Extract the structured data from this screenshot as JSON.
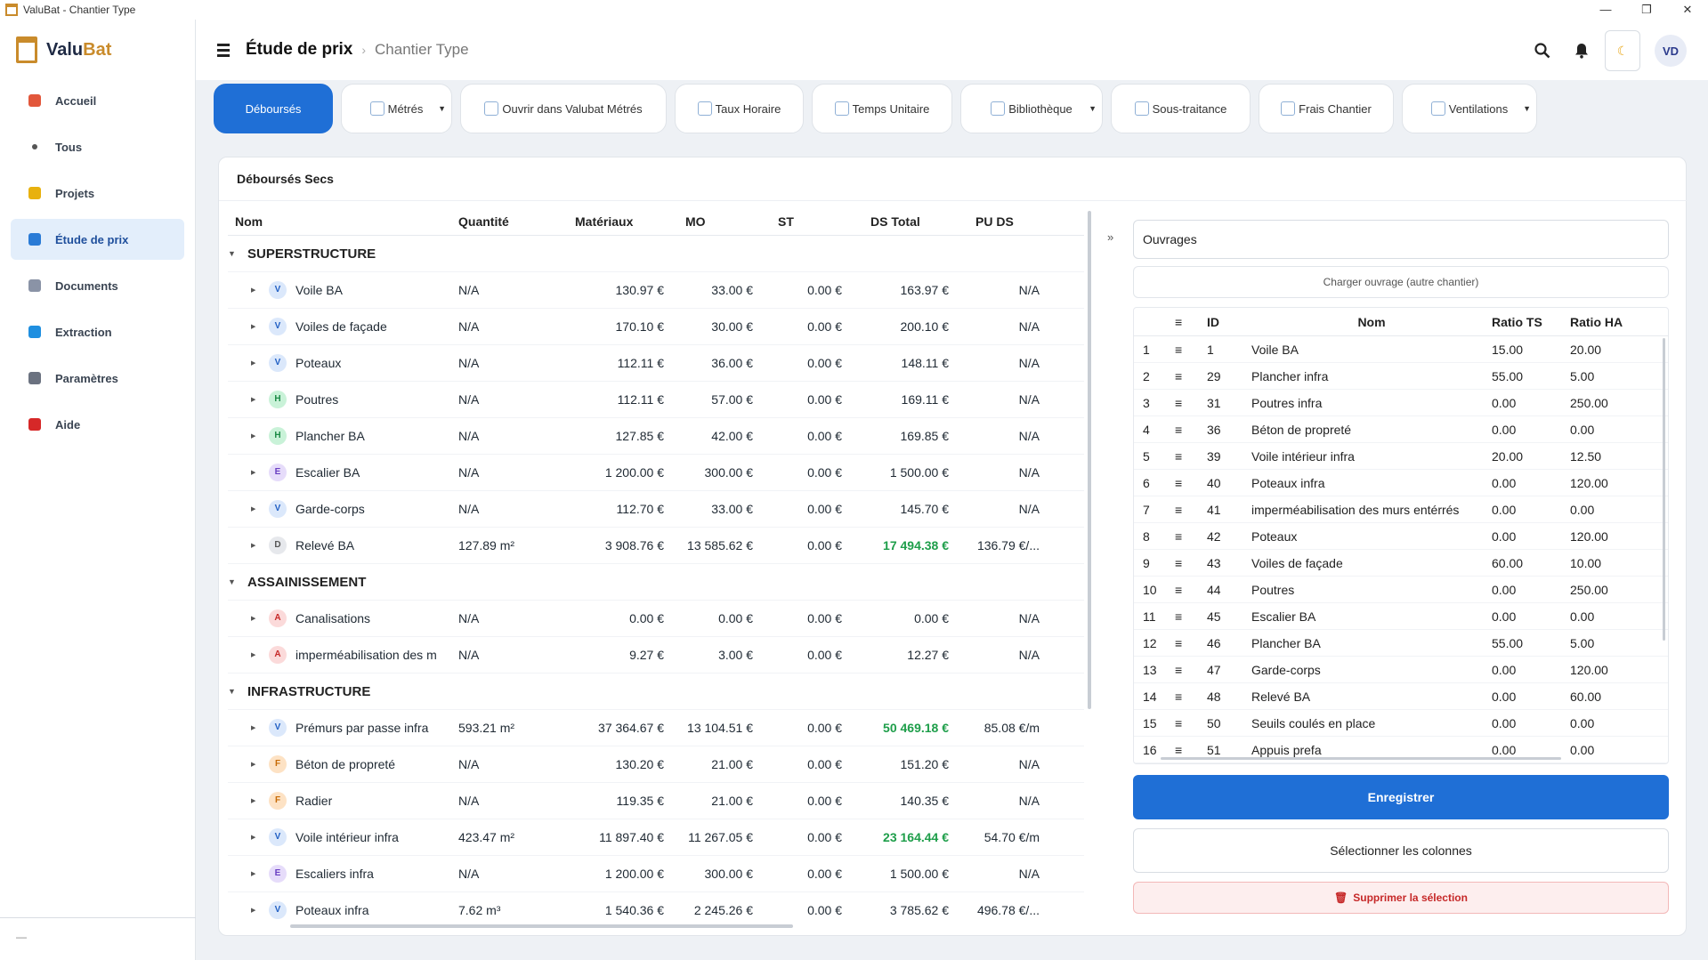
{
  "window": {
    "title": "ValuBat - Chantier Type"
  },
  "logo": {
    "part1": "Valu",
    "part2": "Bat"
  },
  "sidebar": {
    "items": [
      {
        "label": "Accueil",
        "icon": "home-icon",
        "color": "#e2573b"
      },
      {
        "label": "Tous",
        "icon": "square-icon",
        "color": "#555555"
      },
      {
        "label": "Projets",
        "icon": "folder-icon",
        "color": "#e8b10e"
      },
      {
        "label": "Étude de prix",
        "icon": "calculator-icon",
        "color": "#2a7bd6"
      },
      {
        "label": "Documents",
        "icon": "document-icon",
        "color": "#8a93a6"
      },
      {
        "label": "Extraction",
        "icon": "download-icon",
        "color": "#1f8fe0"
      },
      {
        "label": "Paramètres",
        "icon": "gear-icon",
        "color": "#6b7280"
      },
      {
        "label": "Aide",
        "icon": "question-icon",
        "color": "#d62828"
      }
    ],
    "footer": "—"
  },
  "header": {
    "title": "Étude de prix",
    "separator": "›",
    "subtitle": "Chantier Type",
    "avatar": "VD"
  },
  "tabs": [
    {
      "label": "Déboursés"
    },
    {
      "label": "Métrés"
    },
    {
      "label": "Ouvrir dans Valubat Métrés"
    },
    {
      "label": "Taux Horaire"
    },
    {
      "label": "Temps Unitaire"
    },
    {
      "label": "Bibliothèque"
    },
    {
      "label": "Sous-traitance"
    },
    {
      "label": "Frais Chantier"
    },
    {
      "label": "Ventilations"
    }
  ],
  "section": {
    "title": "Déboursés Secs"
  },
  "grid": {
    "columns": {
      "nom": "Nom",
      "quantite": "Quantité",
      "materiaux": "Matériaux",
      "mo": "MO",
      "st": "ST",
      "ds_total": "DS Total",
      "pu_ds": "PU DS"
    },
    "groups": [
      {
        "label": "SUPERSTRUCTURE",
        "rows": [
          {
            "badge": "V",
            "nom": "Voile BA",
            "qte": "N/A",
            "mat": "130.97 €",
            "mo": "33.00 €",
            "st": "0.00 €",
            "ds": "163.97 €",
            "pu": "N/A"
          },
          {
            "badge": "V",
            "nom": "Voiles de façade",
            "qte": "N/A",
            "mat": "170.10 €",
            "mo": "30.00 €",
            "st": "0.00 €",
            "ds": "200.10 €",
            "pu": "N/A"
          },
          {
            "badge": "V",
            "nom": "Poteaux",
            "qte": "N/A",
            "mat": "112.11 €",
            "mo": "36.00 €",
            "st": "0.00 €",
            "ds": "148.11 €",
            "pu": "N/A"
          },
          {
            "badge": "H",
            "nom": "Poutres",
            "qte": "N/A",
            "mat": "112.11 €",
            "mo": "57.00 €",
            "st": "0.00 €",
            "ds": "169.11 €",
            "pu": "N/A"
          },
          {
            "badge": "H",
            "nom": "Plancher BA",
            "qte": "N/A",
            "mat": "127.85 €",
            "mo": "42.00 €",
            "st": "0.00 €",
            "ds": "169.85 €",
            "pu": "N/A"
          },
          {
            "badge": "E",
            "nom": "Escalier BA",
            "qte": "N/A",
            "mat": "1 200.00 €",
            "mo": "300.00 €",
            "st": "0.00 €",
            "ds": "1 500.00 €",
            "pu": "N/A"
          },
          {
            "badge": "V",
            "nom": "Garde-corps",
            "qte": "N/A",
            "mat": "112.70 €",
            "mo": "33.00 €",
            "st": "0.00 €",
            "ds": "145.70 €",
            "pu": "N/A"
          },
          {
            "badge": "D",
            "nom": "Relevé BA",
            "qte": "127.89 m²",
            "mat": "3 908.76 €",
            "mo": "13 585.62 €",
            "st": "0.00 €",
            "ds": "17 494.38 €",
            "pu": "136.79 €/...",
            "highlight": true
          }
        ]
      },
      {
        "label": "ASSAINISSEMENT",
        "rows": [
          {
            "badge": "A",
            "nom": "Canalisations",
            "qte": "N/A",
            "mat": "0.00 €",
            "mo": "0.00 €",
            "st": "0.00 €",
            "ds": "0.00 €",
            "pu": "N/A"
          },
          {
            "badge": "A",
            "nom": "imperméabilisation des m",
            "qte": "N/A",
            "mat": "9.27 €",
            "mo": "3.00 €",
            "st": "0.00 €",
            "ds": "12.27 €",
            "pu": "N/A"
          }
        ]
      },
      {
        "label": "INFRASTRUCTURE",
        "rows": [
          {
            "badge": "V",
            "nom": "Prémurs par passe infra",
            "qte": "593.21 m²",
            "mat": "37 364.67 €",
            "mo": "13 104.51 €",
            "st": "0.00 €",
            "ds": "50 469.18 €",
            "pu": "85.08 €/m",
            "highlight": true
          },
          {
            "badge": "F",
            "nom": "Béton de propreté",
            "qte": "N/A",
            "mat": "130.20 €",
            "mo": "21.00 €",
            "st": "0.00 €",
            "ds": "151.20 €",
            "pu": "N/A"
          },
          {
            "badge": "F",
            "nom": "Radier",
            "qte": "N/A",
            "mat": "119.35 €",
            "mo": "21.00 €",
            "st": "0.00 €",
            "ds": "140.35 €",
            "pu": "N/A"
          },
          {
            "badge": "V",
            "nom": "Voile intérieur infra",
            "qte": "423.47 m²",
            "mat": "11 897.40 €",
            "mo": "11 267.05 €",
            "st": "0.00 €",
            "ds": "23 164.44 €",
            "pu": "54.70 €/m",
            "highlight": true
          },
          {
            "badge": "E",
            "nom": "Escaliers infra",
            "qte": "N/A",
            "mat": "1 200.00 €",
            "mo": "300.00 €",
            "st": "0.00 €",
            "ds": "1 500.00 €",
            "pu": "N/A"
          },
          {
            "badge": "V",
            "nom": "Poteaux infra",
            "qte": "7.62 m³",
            "mat": "1 540.36 €",
            "mo": "2 245.26 €",
            "st": "0.00 €",
            "ds": "3 785.62 €",
            "pu": "496.78 €/..."
          }
        ]
      }
    ]
  },
  "right_panel": {
    "collapse_label": "»",
    "ouvrages_label": "Ouvrages",
    "charger_label": "Charger ouvrage (autre chantier)",
    "columns": {
      "handle": "≡",
      "id": "ID",
      "nom": "Nom",
      "ratio_ts": "Ratio TS",
      "ratio_ha": "Ratio HA"
    },
    "rows": [
      {
        "n": "1",
        "id": "1",
        "nom": "Voile BA",
        "ts": "15.00",
        "ha": "20.00"
      },
      {
        "n": "2",
        "id": "29",
        "nom": "Plancher infra",
        "ts": "55.00",
        "ha": "5.00"
      },
      {
        "n": "3",
        "id": "31",
        "nom": "Poutres infra",
        "ts": "0.00",
        "ha": "250.00"
      },
      {
        "n": "4",
        "id": "36",
        "nom": "Béton de propreté",
        "ts": "0.00",
        "ha": "0.00"
      },
      {
        "n": "5",
        "id": "39",
        "nom": "Voile intérieur infra",
        "ts": "20.00",
        "ha": "12.50"
      },
      {
        "n": "6",
        "id": "40",
        "nom": "Poteaux infra",
        "ts": "0.00",
        "ha": "120.00"
      },
      {
        "n": "7",
        "id": "41",
        "nom": "imperméabilisation des murs entérrés",
        "ts": "0.00",
        "ha": "0.00"
      },
      {
        "n": "8",
        "id": "42",
        "nom": "Poteaux",
        "ts": "0.00",
        "ha": "120.00"
      },
      {
        "n": "9",
        "id": "43",
        "nom": "Voiles de façade",
        "ts": "60.00",
        "ha": "10.00"
      },
      {
        "n": "10",
        "id": "44",
        "nom": "Poutres",
        "ts": "0.00",
        "ha": "250.00"
      },
      {
        "n": "11",
        "id": "45",
        "nom": "Escalier BA",
        "ts": "0.00",
        "ha": "0.00"
      },
      {
        "n": "12",
        "id": "46",
        "nom": "Plancher BA",
        "ts": "55.00",
        "ha": "5.00"
      },
      {
        "n": "13",
        "id": "47",
        "nom": "Garde-corps",
        "ts": "0.00",
        "ha": "120.00"
      },
      {
        "n": "14",
        "id": "48",
        "nom": "Relevé BA",
        "ts": "0.00",
        "ha": "60.00"
      },
      {
        "n": "15",
        "id": "50",
        "nom": "Seuils coulés en place",
        "ts": "0.00",
        "ha": "0.00"
      },
      {
        "n": "16",
        "id": "51",
        "nom": "Appuis prefa",
        "ts": "0.00",
        "ha": "0.00"
      }
    ],
    "save_label": "Enregistrer",
    "columns_label": "Sélectionner les colonnes",
    "delete_label": "Supprimer la sélection"
  }
}
